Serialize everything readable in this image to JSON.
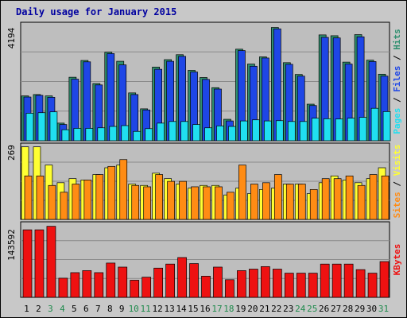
{
  "title": "Daily usage for January 2015",
  "colors": {
    "background": "#c8c8c8",
    "plot_bg": "#bebebe",
    "title": "#0000a0",
    "grid": "#8a8a8a",
    "hits": "#2f8f6f",
    "files": "#1e46e6",
    "pages": "#20dff0",
    "visits": "#ffff33",
    "sites": "#ff8c14",
    "kbytes": "#ee1111",
    "weekend_day": "#1f8a4c",
    "weekday_day": "#000000"
  },
  "chart_data": [
    {
      "type": "bar",
      "panel": "hits-files-pages",
      "y_axis_max_label": "4194",
      "legend": [
        "Pages",
        "Files",
        "Hits"
      ],
      "categories": [
        "1",
        "2",
        "3",
        "4",
        "5",
        "6",
        "7",
        "8",
        "9",
        "10",
        "11",
        "12",
        "13",
        "14",
        "15",
        "16",
        "17",
        "18",
        "19",
        "20",
        "21",
        "22",
        "23",
        "24",
        "25",
        "26",
        "27",
        "28",
        "29",
        "30",
        "31"
      ],
      "weekend": [
        false,
        false,
        true,
        true,
        false,
        false,
        false,
        false,
        false,
        true,
        true,
        false,
        false,
        false,
        false,
        false,
        true,
        true,
        false,
        false,
        false,
        false,
        false,
        true,
        true,
        false,
        false,
        false,
        false,
        false,
        true
      ],
      "ylim": [
        0,
        4194
      ],
      "series": [
        {
          "name": "Hits",
          "values": [
            1630,
            1680,
            1630,
            640,
            2310,
            2920,
            2080,
            3220,
            2890,
            1740,
            1160,
            2680,
            2950,
            3130,
            2560,
            2300,
            1930,
            780,
            3330,
            2790,
            3050,
            4120,
            2840,
            2410,
            1330,
            3850,
            3820,
            2860,
            3860,
            2930,
            2420
          ]
        },
        {
          "name": "Files",
          "values": [
            1590,
            1650,
            1580,
            590,
            2240,
            2870,
            2030,
            3170,
            2760,
            1680,
            1120,
            2600,
            2890,
            3070,
            2500,
            2230,
            1880,
            720,
            3280,
            2710,
            3010,
            4070,
            2780,
            2350,
            1280,
            3760,
            3740,
            2790,
            3780,
            2880,
            2350
          ]
        },
        {
          "name": "Pages",
          "values": [
            1000,
            1020,
            1050,
            400,
            450,
            450,
            470,
            520,
            550,
            340,
            440,
            640,
            700,
            700,
            590,
            470,
            540,
            520,
            720,
            760,
            720,
            730,
            700,
            700,
            820,
            800,
            790,
            820,
            850,
            1180,
            1060
          ]
        }
      ]
    },
    {
      "type": "bar",
      "panel": "visits-sites",
      "y_axis_max_label": "269",
      "legend": [
        "Sites",
        "Visits"
      ],
      "categories": [
        "1",
        "2",
        "3",
        "4",
        "5",
        "6",
        "7",
        "8",
        "9",
        "10",
        "11",
        "12",
        "13",
        "14",
        "15",
        "16",
        "17",
        "18",
        "19",
        "20",
        "21",
        "22",
        "23",
        "24",
        "25",
        "26",
        "27",
        "28",
        "29",
        "30",
        "31"
      ],
      "ylim": [
        0,
        269
      ],
      "series": [
        {
          "name": "Visits",
          "values": [
            267,
            267,
            200,
            135,
            150,
            145,
            165,
            190,
            200,
            130,
            125,
            170,
            150,
            130,
            115,
            125,
            125,
            90,
            115,
            95,
            110,
            115,
            130,
            130,
            95,
            135,
            160,
            145,
            135,
            150,
            190
          ]
        },
        {
          "name": "Sites",
          "values": [
            160,
            160,
            125,
            100,
            130,
            145,
            165,
            195,
            220,
            125,
            120,
            165,
            140,
            140,
            120,
            120,
            120,
            100,
            200,
            130,
            135,
            165,
            130,
            130,
            110,
            150,
            150,
            160,
            125,
            165,
            160
          ]
        }
      ]
    },
    {
      "type": "bar",
      "panel": "kbytes",
      "y_axis_max_label": "143592",
      "legend": [
        "KBytes"
      ],
      "categories": [
        "1",
        "2",
        "3",
        "4",
        "5",
        "6",
        "7",
        "8",
        "9",
        "10",
        "11",
        "12",
        "13",
        "14",
        "15",
        "16",
        "17",
        "18",
        "19",
        "20",
        "21",
        "22",
        "23",
        "24",
        "25",
        "26",
        "27",
        "28",
        "29",
        "30",
        "31"
      ],
      "ylim": [
        0,
        143592
      ],
      "series": [
        {
          "name": "KBytes",
          "values": [
            134000,
            134000,
            141000,
            38000,
            49000,
            53000,
            49000,
            68000,
            60000,
            34000,
            40000,
            58000,
            66000,
            79000,
            67000,
            42000,
            60000,
            35000,
            53000,
            56000,
            61000,
            56000,
            48000,
            48000,
            48000,
            66000,
            66000,
            66000,
            55000,
            48000,
            71000
          ]
        }
      ]
    }
  ]
}
